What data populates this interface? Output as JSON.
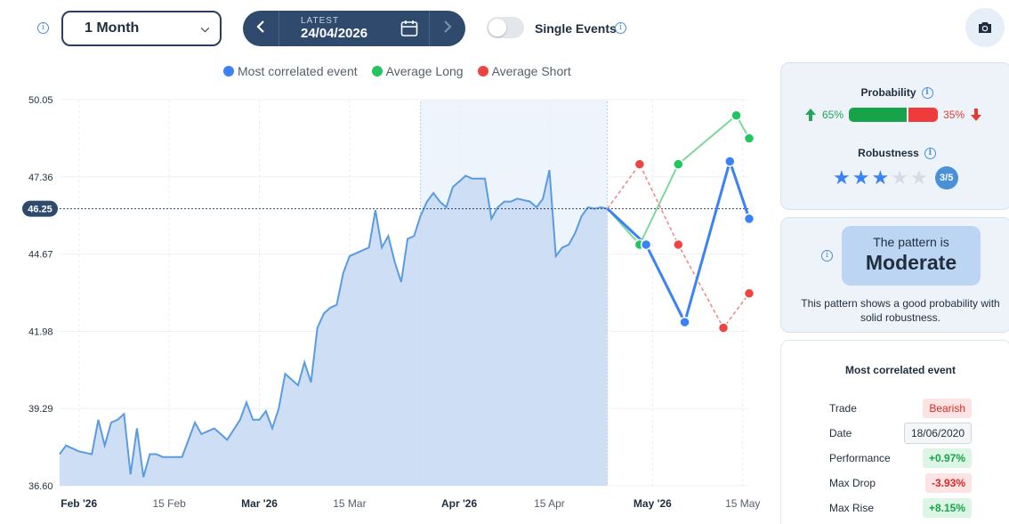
{
  "toolbar": {
    "period_value": "1 Month",
    "date_caption": "LATEST",
    "date_value": "24/04/2026",
    "single_events_label": "Single Events",
    "single_events_on": false
  },
  "legend": [
    {
      "label": "Most correlated event",
      "color": "#3b82f6"
    },
    {
      "label": "Average Long",
      "color": "#22c55e"
    },
    {
      "label": "Average Short",
      "color": "#ef4444"
    }
  ],
  "colors": {
    "area_fill": "#c9dcf4",
    "area_stroke": "#5b9be0",
    "accent_dark": "#2f4a6c",
    "long": "#22c55e",
    "short": "#ef4444",
    "event": "#3b82f6"
  },
  "chart_data": {
    "type": "line",
    "title": "",
    "ylim": [
      36.6,
      50.05
    ],
    "yticks": [
      "50.05",
      "47.36",
      "44.67",
      "41.98",
      "39.29",
      "36.60"
    ],
    "current_price": 46.25,
    "current_price_label": "46.25",
    "xticks": [
      {
        "label": "Feb '26",
        "date": "2026-02-01",
        "bold": true
      },
      {
        "label": "15 Feb",
        "date": "2026-02-15",
        "bold": false
      },
      {
        "label": "Mar '26",
        "date": "2026-03-01",
        "bold": true
      },
      {
        "label": "15 Mar",
        "date": "2026-03-15",
        "bold": false
      },
      {
        "label": "Apr '26",
        "date": "2026-04-01",
        "bold": true
      },
      {
        "label": "15 Apr",
        "date": "2026-04-15",
        "bold": false
      },
      {
        "label": "May '26",
        "date": "2026-05-01",
        "bold": true
      },
      {
        "label": "15 May",
        "date": "2026-05-15",
        "bold": false
      }
    ],
    "highlight_range": [
      "2026-03-26",
      "2026-04-24"
    ],
    "history": {
      "dates": [
        "2026-01-29",
        "2026-01-30",
        "2026-02-01",
        "2026-02-03",
        "2026-02-04",
        "2026-02-05",
        "2026-02-06",
        "2026-02-07",
        "2026-02-08",
        "2026-02-09",
        "2026-02-10",
        "2026-02-11",
        "2026-02-12",
        "2026-02-13",
        "2026-02-14",
        "2026-02-15",
        "2026-02-17",
        "2026-02-19",
        "2026-02-20",
        "2026-02-21",
        "2026-02-22",
        "2026-02-23",
        "2026-02-24",
        "2026-02-26",
        "2026-02-27",
        "2026-02-28",
        "2026-03-01",
        "2026-03-02",
        "2026-03-03",
        "2026-03-04",
        "2026-03-05",
        "2026-03-06",
        "2026-03-07",
        "2026-03-08",
        "2026-03-09",
        "2026-03-10",
        "2026-03-11",
        "2026-03-12",
        "2026-03-13",
        "2026-03-14",
        "2026-03-15",
        "2026-03-17",
        "2026-03-18",
        "2026-03-19",
        "2026-03-20",
        "2026-03-21",
        "2026-03-22",
        "2026-03-23",
        "2026-03-24",
        "2026-03-25",
        "2026-03-26",
        "2026-03-27",
        "2026-03-28",
        "2026-03-29",
        "2026-03-30",
        "2026-03-31",
        "2026-04-01",
        "2026-04-02",
        "2026-04-03",
        "2026-04-05",
        "2026-04-06",
        "2026-04-07",
        "2026-04-08",
        "2026-04-09",
        "2026-04-10",
        "2026-04-12",
        "2026-04-13",
        "2026-04-14",
        "2026-04-15",
        "2026-04-16",
        "2026-04-17",
        "2026-04-18",
        "2026-04-19",
        "2026-04-20",
        "2026-04-21",
        "2026-04-22",
        "2026-04-23",
        "2026-04-24"
      ],
      "values": [
        37.7,
        38.0,
        37.8,
        37.7,
        38.9,
        38.0,
        38.8,
        38.9,
        39.1,
        37.0,
        38.6,
        36.9,
        37.7,
        37.7,
        37.6,
        37.6,
        37.6,
        38.8,
        38.4,
        38.5,
        38.6,
        38.4,
        38.2,
        38.9,
        39.5,
        38.9,
        38.9,
        39.2,
        38.6,
        39.3,
        40.5,
        40.3,
        40.1,
        40.9,
        40.2,
        42.1,
        42.6,
        42.8,
        42.9,
        44.0,
        44.6,
        44.8,
        44.9,
        46.2,
        44.9,
        45.3,
        44.4,
        43.7,
        45.2,
        45.3,
        46.0,
        46.5,
        46.8,
        46.5,
        46.3,
        47.0,
        47.2,
        47.4,
        47.3,
        47.3,
        45.9,
        46.3,
        46.5,
        46.5,
        46.6,
        46.5,
        46.3,
        46.6,
        47.6,
        44.6,
        44.9,
        45.0,
        45.4,
        46.0,
        46.3,
        46.25,
        46.3,
        46.25
      ]
    },
    "series": [
      {
        "name": "Most correlated event",
        "style": "solid",
        "points": [
          [
            "2026-04-24",
            46.25
          ],
          [
            "2026-04-30",
            45.0
          ],
          [
            "2026-05-06",
            42.3
          ],
          [
            "2026-05-13",
            47.9
          ],
          [
            "2026-05-16",
            45.9
          ]
        ]
      },
      {
        "name": "Average Long",
        "style": "solid",
        "points": [
          [
            "2026-04-24",
            46.25
          ],
          [
            "2026-04-29",
            45.0
          ],
          [
            "2026-05-05",
            47.8
          ],
          [
            "2026-05-14",
            49.5
          ],
          [
            "2026-05-16",
            48.7
          ]
        ]
      },
      {
        "name": "Average Short",
        "style": "dashed",
        "points": [
          [
            "2026-04-24",
            46.25
          ],
          [
            "2026-04-29",
            47.8
          ],
          [
            "2026-05-05",
            45.0
          ],
          [
            "2026-05-12",
            42.1
          ],
          [
            "2026-05-16",
            43.3
          ]
        ]
      }
    ]
  },
  "probability": {
    "title": "Probability",
    "long_pct": 65,
    "short_pct": 35,
    "long_label": "65%",
    "short_label": "35%"
  },
  "robustness": {
    "title": "Robustness",
    "score": 3,
    "max": 5,
    "badge": "3/5"
  },
  "pattern": {
    "prefix": "The pattern is",
    "strength": "Moderate",
    "description": "This pattern shows a good probability with solid robustness."
  },
  "event": {
    "title": "Most correlated event",
    "rows": [
      {
        "label": "Trade",
        "value": "Bearish",
        "style": "bear"
      },
      {
        "label": "Date",
        "value": "18/06/2020",
        "style": "neutral"
      },
      {
        "label": "Performance",
        "value": "+0.97%",
        "style": "pos"
      },
      {
        "label": "Max Drop",
        "value": "-3.93%",
        "style": "neg"
      },
      {
        "label": "Max Rise",
        "value": "+8.15%",
        "style": "pos"
      }
    ]
  }
}
